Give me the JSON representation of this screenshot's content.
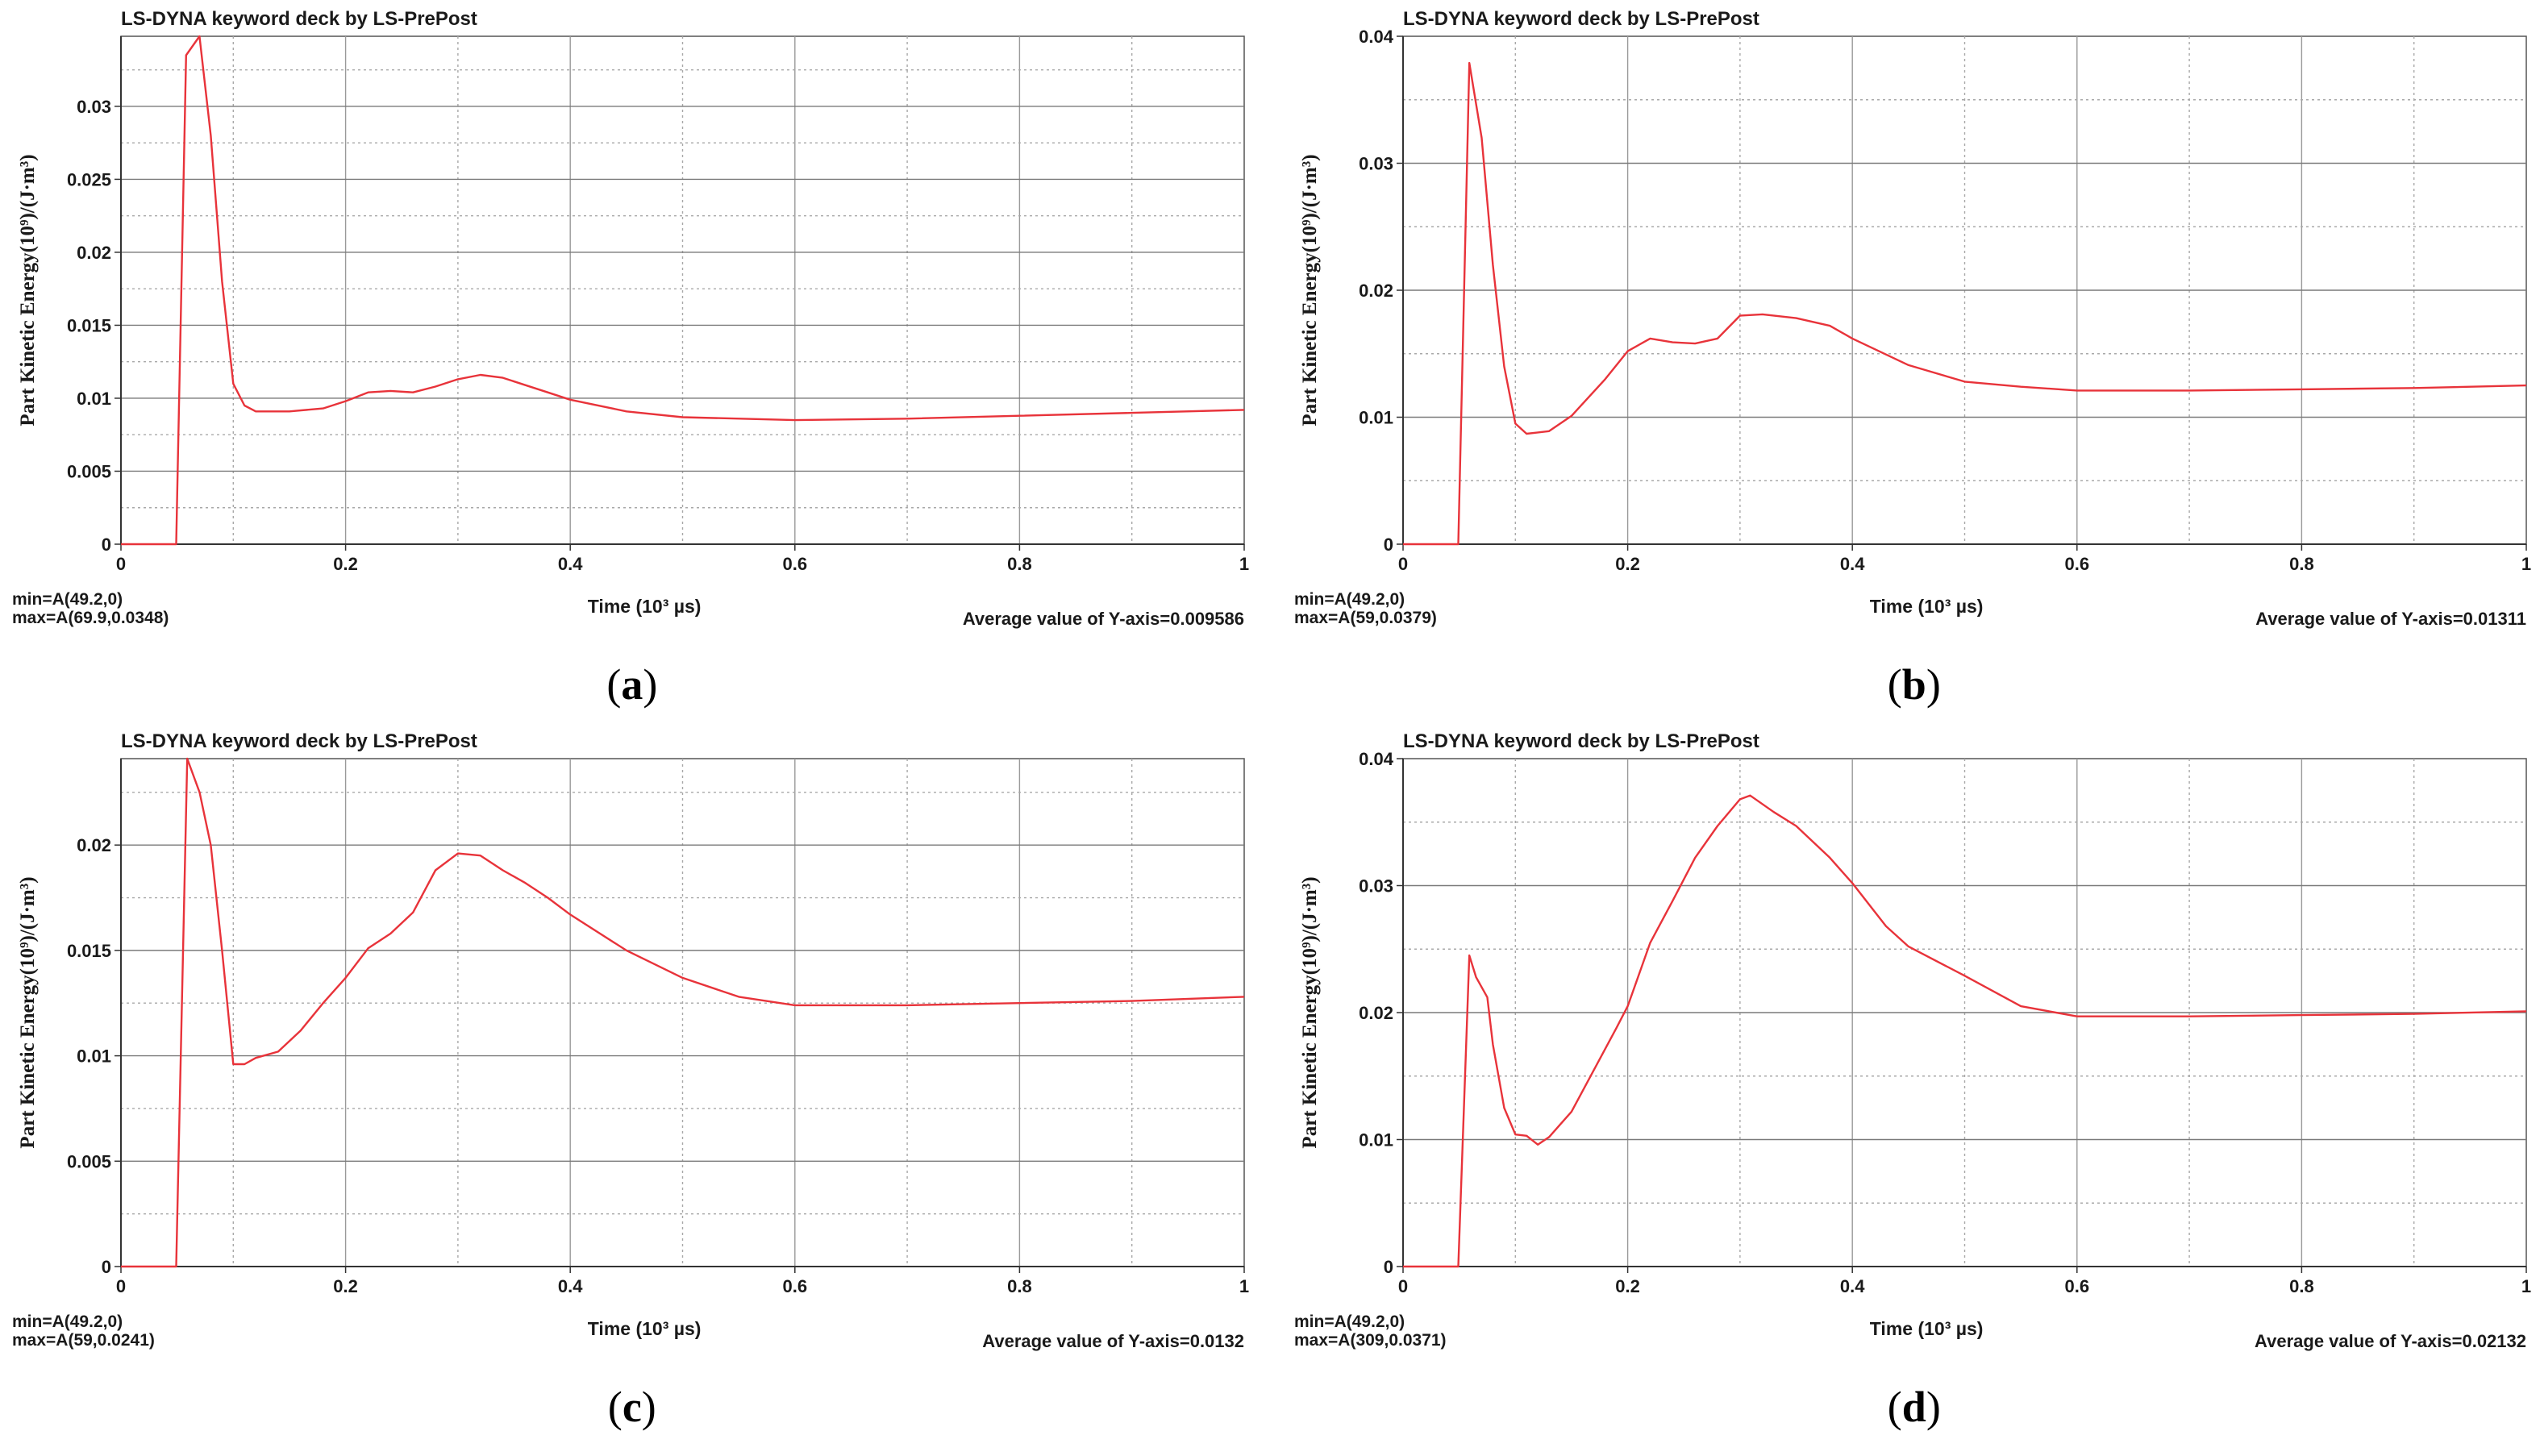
{
  "chart_data": [
    {
      "type": "line",
      "caption": "a",
      "title": "LS-DYNA keyword deck by LS-PrePost",
      "xlabel": "Time (10³ µs)",
      "ylabel": "Part Kinetic Energy(10⁹)/(J·m³)",
      "xlim": [
        0,
        1
      ],
      "ylim": [
        0,
        0.0348
      ],
      "xticks": [
        "0",
        "0.2",
        "0.4",
        "0.6",
        "0.8",
        "1"
      ],
      "yticks": [
        0,
        0.005,
        0.01,
        0.015,
        0.02,
        0.025,
        0.03
      ],
      "ytick_labels": [
        "0",
        "0.005",
        "0.01",
        "0.015",
        "0.02",
        "0.025",
        "0.03"
      ],
      "grid": true,
      "line_color": "#e8333a",
      "min_text": "min=A(49.2,0)",
      "max_text": "max=A(69.9,0.0348)",
      "avg_text": "Average value of Y-axis=0.009586",
      "series": [
        {
          "x": [
            0,
            0.0492,
            0.058,
            0.0699,
            0.08,
            0.09,
            0.1,
            0.11,
            0.12,
            0.15,
            0.18,
            0.2,
            0.22,
            0.24,
            0.26,
            0.28,
            0.3,
            0.32,
            0.34,
            0.36,
            0.38,
            0.4,
            0.45,
            0.5,
            0.6,
            0.7,
            0.8,
            0.9,
            1.0
          ],
          "y": [
            0,
            0,
            0.0335,
            0.0348,
            0.028,
            0.018,
            0.011,
            0.0095,
            0.0091,
            0.0091,
            0.0093,
            0.0098,
            0.0104,
            0.0105,
            0.0104,
            0.0108,
            0.0113,
            0.0116,
            0.0114,
            0.0109,
            0.0104,
            0.0099,
            0.0091,
            0.0087,
            0.0085,
            0.0086,
            0.0088,
            0.009,
            0.0092
          ]
        }
      ]
    },
    {
      "type": "line",
      "caption": "b",
      "title": "LS-DYNA keyword deck by LS-PrePost",
      "xlabel": "Time (10³ µs)",
      "ylabel": "Part Kinetic Energy(10⁹)/(J·m³)",
      "xlim": [
        0,
        1
      ],
      "ylim": [
        0,
        0.04
      ],
      "xticks": [
        "0",
        "0.2",
        "0.4",
        "0.6",
        "0.8",
        "1"
      ],
      "yticks": [
        0,
        0.01,
        0.02,
        0.03,
        0.04
      ],
      "ytick_labels": [
        "0",
        "0.01",
        "0.02",
        "0.03",
        "0.04"
      ],
      "grid": true,
      "line_color": "#e8333a",
      "min_text": "min=A(49.2,0)",
      "max_text": "max=A(59,0.0379)",
      "avg_text": "Average value of Y-axis=0.01311",
      "series": [
        {
          "x": [
            0,
            0.0492,
            0.059,
            0.07,
            0.08,
            0.09,
            0.1,
            0.11,
            0.13,
            0.15,
            0.18,
            0.2,
            0.22,
            0.24,
            0.26,
            0.28,
            0.3,
            0.32,
            0.35,
            0.38,
            0.4,
            0.45,
            0.5,
            0.55,
            0.6,
            0.7,
            0.8,
            0.9,
            1.0
          ],
          "y": [
            0,
            0,
            0.0379,
            0.032,
            0.022,
            0.014,
            0.0095,
            0.0087,
            0.0089,
            0.0101,
            0.013,
            0.0152,
            0.0162,
            0.0159,
            0.0158,
            0.0162,
            0.018,
            0.0181,
            0.0178,
            0.0172,
            0.0162,
            0.0141,
            0.0128,
            0.0124,
            0.0121,
            0.0121,
            0.0122,
            0.0123,
            0.0125
          ]
        }
      ]
    },
    {
      "type": "line",
      "caption": "c",
      "title": "LS-DYNA keyword deck by LS-PrePost",
      "xlabel": "Time (10³ µs)",
      "ylabel": "Part Kinetic Energy(10⁹)/(J·m³)",
      "xlim": [
        0,
        1
      ],
      "ylim": [
        0,
        0.0241
      ],
      "xticks": [
        "0",
        "0.2",
        "0.4",
        "0.6",
        "0.8",
        "1"
      ],
      "yticks": [
        0,
        0.005,
        0.01,
        0.015,
        0.02
      ],
      "ytick_labels": [
        "0",
        "0.005",
        "0.01",
        "0.015",
        "0.02"
      ],
      "grid": true,
      "line_color": "#e8333a",
      "min_text": "min=A(49.2,0)",
      "max_text": "max=A(59,0.0241)",
      "avg_text": "Average value of Y-axis=0.0132",
      "series": [
        {
          "x": [
            0,
            0.0492,
            0.059,
            0.07,
            0.08,
            0.09,
            0.1,
            0.11,
            0.12,
            0.14,
            0.16,
            0.18,
            0.2,
            0.22,
            0.24,
            0.26,
            0.28,
            0.3,
            0.32,
            0.34,
            0.36,
            0.38,
            0.4,
            0.45,
            0.5,
            0.55,
            0.6,
            0.7,
            0.8,
            0.9,
            1.0
          ],
          "y": [
            0,
            0,
            0.0241,
            0.0225,
            0.02,
            0.015,
            0.0096,
            0.0096,
            0.0099,
            0.0102,
            0.0112,
            0.0125,
            0.0137,
            0.0151,
            0.0158,
            0.0168,
            0.0188,
            0.0196,
            0.0195,
            0.0188,
            0.0182,
            0.0175,
            0.0167,
            0.015,
            0.0137,
            0.0128,
            0.0124,
            0.0124,
            0.0125,
            0.0126,
            0.0128
          ]
        }
      ]
    },
    {
      "type": "line",
      "caption": "d",
      "title": "LS-DYNA keyword deck by LS-PrePost",
      "xlabel": "Time (10³ µs)",
      "ylabel": "Part Kinetic Energy(10⁹)/(J·m³)",
      "xlim": [
        0,
        1
      ],
      "ylim": [
        0,
        0.04
      ],
      "xticks": [
        "0",
        "0.2",
        "0.4",
        "0.6",
        "0.8",
        "1"
      ],
      "yticks": [
        0,
        0.01,
        0.02,
        0.03,
        0.04
      ],
      "ytick_labels": [
        "0",
        "0.01",
        "0.02",
        "0.03",
        "0.04"
      ],
      "grid": true,
      "line_color": "#e8333a",
      "min_text": "min=A(49.2,0)",
      "max_text": "max=A(309,0.0371)",
      "avg_text": "Average value of Y-axis=0.02132",
      "series": [
        {
          "x": [
            0,
            0.0492,
            0.059,
            0.065,
            0.075,
            0.08,
            0.09,
            0.1,
            0.11,
            0.12,
            0.13,
            0.15,
            0.17,
            0.19,
            0.2,
            0.22,
            0.24,
            0.26,
            0.28,
            0.3,
            0.309,
            0.33,
            0.35,
            0.38,
            0.4,
            0.43,
            0.45,
            0.5,
            0.55,
            0.6,
            0.7,
            0.8,
            0.9,
            1.0
          ],
          "y": [
            0,
            0,
            0.0245,
            0.0228,
            0.0212,
            0.0175,
            0.0125,
            0.0104,
            0.0103,
            0.0096,
            0.0102,
            0.0122,
            0.0155,
            0.0188,
            0.0205,
            0.0255,
            0.0288,
            0.0322,
            0.0347,
            0.0368,
            0.0371,
            0.0358,
            0.0347,
            0.0322,
            0.0302,
            0.0268,
            0.0252,
            0.0229,
            0.0205,
            0.0197,
            0.0197,
            0.0198,
            0.0199,
            0.0201
          ]
        }
      ]
    }
  ]
}
